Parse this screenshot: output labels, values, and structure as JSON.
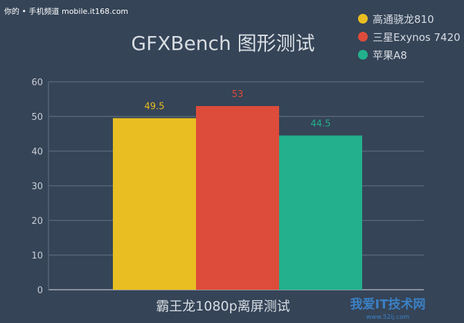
{
  "watermark_top": "你的 • 手机频道 mobile.it168.com",
  "watermark_bottom": "我爱IT技术网 www.52ij.com",
  "chart_data": {
    "type": "bar",
    "title": "GFXBench 图形测试",
    "categories": [
      "霸王龙1080p离屏测试"
    ],
    "xlabel": "",
    "ylabel": "",
    "ylim": [
      0,
      60
    ],
    "yticks": [
      0,
      10,
      20,
      30,
      40,
      50,
      60
    ],
    "grid": true,
    "legend_placement": "top-right",
    "series": [
      {
        "name": "高通骁龙810",
        "values": [
          49.5
        ],
        "color": "#e8be22",
        "label_color": "#e8be22"
      },
      {
        "name": "三星Exynos 7420",
        "values": [
          53
        ],
        "color": "#dd4c3a",
        "label_color": "#dd4c3a"
      },
      {
        "name": "苹果A8",
        "values": [
          44.5
        ],
        "color": "#22b08d",
        "label_color": "#22b08d"
      }
    ]
  }
}
